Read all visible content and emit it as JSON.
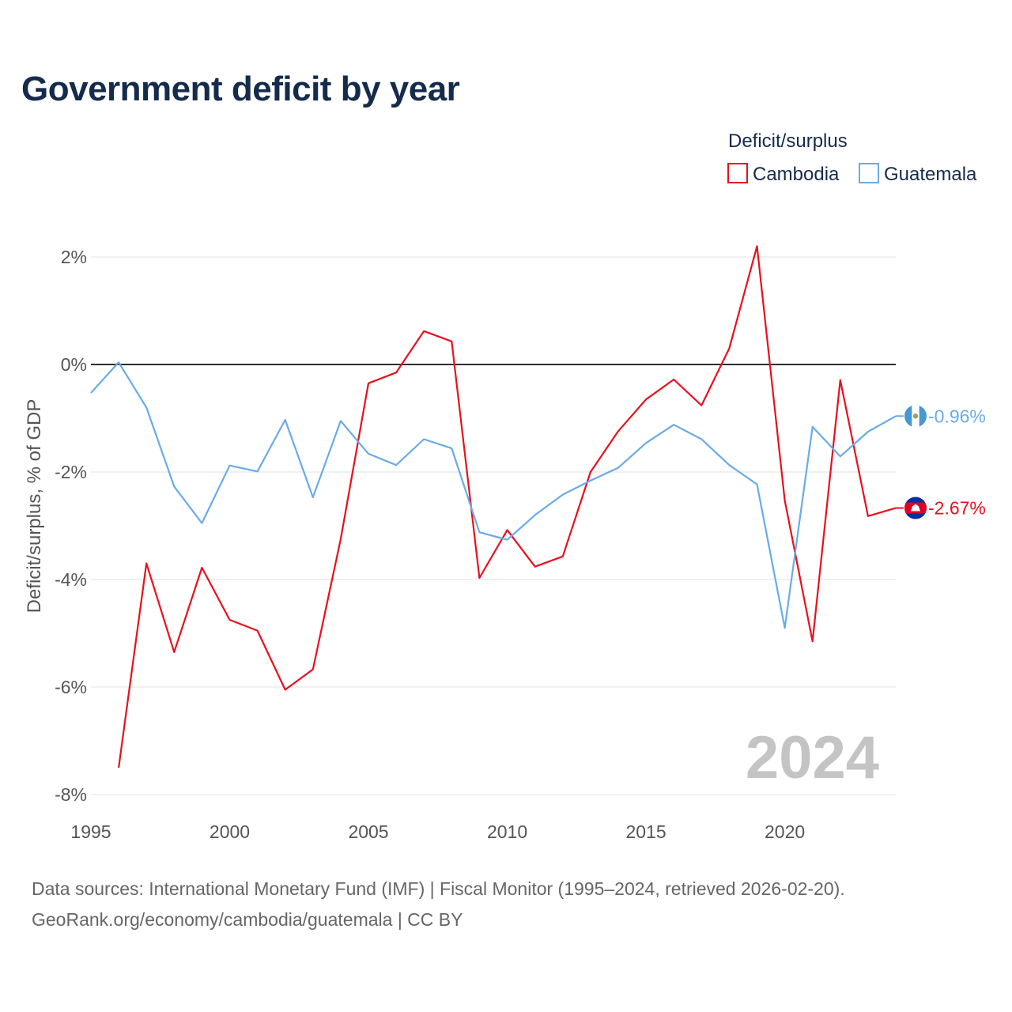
{
  "chart_data": {
    "type": "line",
    "title": "Government deficit by year",
    "legend_title": "Deficit/surplus",
    "ylabel": "Deficit/surplus, % of GDP",
    "xlabel": "",
    "xlim": [
      1995,
      2024
    ],
    "ylim": [
      -8,
      2
    ],
    "x_ticks": [
      1995,
      2000,
      2005,
      2010,
      2015,
      2020
    ],
    "x_tick_labels": [
      "1995",
      "2000",
      "2005",
      "2010",
      "2015",
      "2020"
    ],
    "y_ticks": [
      2,
      0,
      -2,
      -4,
      -6,
      -8
    ],
    "y_tick_labels": [
      "2%",
      "0%",
      "-2%",
      "-4%",
      "-6%",
      "-8%"
    ],
    "watermark": "2024",
    "series": [
      {
        "name": "Cambodia",
        "color": "#e8101d",
        "flag": "cambodia-flag",
        "end_label": "-2.67%",
        "x": [
          1996,
          1997,
          1998,
          1999,
          2000,
          2001,
          2002,
          2003,
          2004,
          2005,
          2006,
          2007,
          2008,
          2009,
          2010,
          2011,
          2012,
          2013,
          2014,
          2015,
          2016,
          2017,
          2018,
          2019,
          2020,
          2021,
          2022,
          2023,
          2024
        ],
        "values": [
          -7.5,
          -3.7,
          -5.35,
          -3.78,
          -4.75,
          -4.95,
          -6.05,
          -5.67,
          -3.25,
          -0.35,
          -0.15,
          0.62,
          0.43,
          -3.97,
          -3.08,
          -3.76,
          -3.57,
          -2.0,
          -1.24,
          -0.65,
          -0.28,
          -0.76,
          0.3,
          2.2,
          -2.53,
          -5.15,
          -0.29,
          -2.82,
          -2.67
        ]
      },
      {
        "name": "Guatemala",
        "color": "#6aabe8",
        "flag": "guatemala-flag",
        "end_label": "-0.96%",
        "x": [
          1995,
          1996,
          1997,
          1998,
          1999,
          2000,
          2001,
          2002,
          2003,
          2004,
          2005,
          2006,
          2007,
          2008,
          2009,
          2010,
          2011,
          2012,
          2013,
          2014,
          2015,
          2016,
          2017,
          2018,
          2019,
          2020,
          2021,
          2022,
          2023,
          2024
        ],
        "values": [
          -0.53,
          0.04,
          -0.8,
          -2.27,
          -2.95,
          -1.88,
          -1.99,
          -1.03,
          -2.47,
          -1.05,
          -1.66,
          -1.87,
          -1.39,
          -1.56,
          -3.12,
          -3.26,
          -2.8,
          -2.42,
          -2.16,
          -1.92,
          -1.46,
          -1.12,
          -1.39,
          -1.87,
          -2.23,
          -4.9,
          -1.16,
          -1.71,
          -1.25,
          -0.96
        ]
      }
    ]
  },
  "footer": {
    "sources": "Data sources: International Monetary Fund (IMF) | Fiscal Monitor (1995–2024, retrieved 2026-02-20).",
    "credit": "GeoRank.org/economy/cambodia/guatemala | CC BY"
  }
}
